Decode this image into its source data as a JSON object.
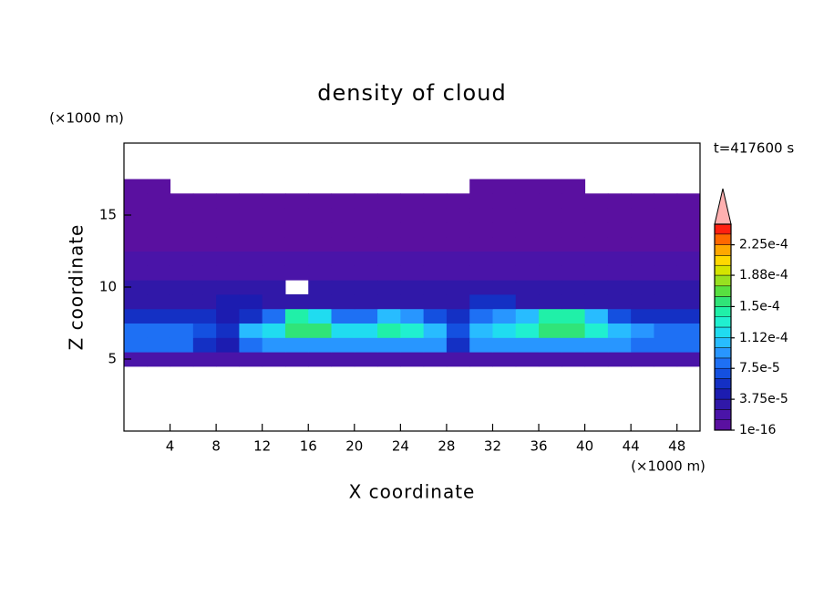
{
  "chart_data": {
    "type": "contour",
    "title": "density of cloud",
    "xlabel": "X coordinate",
    "ylabel": "Z coordinate",
    "xunit": "(×1000 m)",
    "yunit": "(×1000 m)",
    "annotation": "t=417600 s",
    "xlim": [
      0,
      50
    ],
    "ylim": [
      0,
      20
    ],
    "xticks": [
      4,
      8,
      12,
      16,
      20,
      24,
      28,
      32,
      36,
      40,
      44,
      48
    ],
    "yticks": [
      5,
      10,
      15
    ],
    "x": [
      1,
      3,
      5,
      7,
      9,
      11,
      13,
      15,
      17,
      19,
      21,
      23,
      25,
      27,
      29,
      31,
      33,
      35,
      37,
      39,
      41,
      43,
      45,
      47,
      49
    ],
    "z": [
      5,
      6,
      7,
      8,
      9,
      10,
      11,
      12,
      13,
      14,
      15,
      16,
      17
    ],
    "values": [
      [
        2e-05,
        2e-05,
        2e-05,
        2e-05,
        2e-05,
        2e-05,
        2e-05,
        2e-05,
        2e-05,
        2e-05,
        2e-05,
        2e-05,
        2e-05,
        2e-05,
        2e-05,
        2e-05,
        2e-05,
        2e-05,
        2e-05,
        2e-05,
        2e-05,
        2e-05,
        2e-05,
        2e-05,
        2e-05
      ],
      [
        8e-05,
        8e-05,
        8e-05,
        6e-05,
        4e-05,
        8e-05,
        9e-05,
        9e-05,
        9e-05,
        9e-05,
        9e-05,
        9e-05,
        9e-05,
        9e-05,
        5e-05,
        9e-05,
        9e-05,
        9e-05,
        9e-05,
        9e-05,
        9e-05,
        9e-05,
        8e-05,
        8e-05,
        8e-05
      ],
      [
        8e-05,
        8e-05,
        8e-05,
        7e-05,
        5e-05,
        0.0001,
        0.00012,
        0.00015,
        0.00015,
        0.00012,
        0.00012,
        0.00014,
        0.00013,
        0.00011,
        7e-05,
        0.00011,
        0.00012,
        0.00013,
        0.00015,
        0.00015,
        0.00013,
        0.00011,
        9e-05,
        8e-05,
        8e-05
      ],
      [
        5e-05,
        5e-05,
        5e-05,
        5e-05,
        4e-05,
        6e-05,
        8e-05,
        0.00014,
        0.00012,
        8e-05,
        8e-05,
        0.0001,
        9e-05,
        7e-05,
        6e-05,
        8e-05,
        9e-05,
        0.00011,
        0.00014,
        0.00014,
        0.0001,
        7e-05,
        6e-05,
        5e-05,
        5e-05
      ],
      [
        3.5e-05,
        3.5e-05,
        3.5e-05,
        3.5e-05,
        4.5e-05,
        4.5e-05,
        3.5e-05,
        3.5e-05,
        3.5e-05,
        3.5e-05,
        3.5e-05,
        3.5e-05,
        3.5e-05,
        3.5e-05,
        3.5e-05,
        5e-05,
        5e-05,
        3.5e-05,
        3.5e-05,
        3.5e-05,
        3.5e-05,
        3.5e-05,
        3.5e-05,
        3.5e-05,
        3.5e-05
      ],
      [
        2.5e-05,
        2.5e-05,
        2.5e-05,
        2.5e-05,
        2.5e-05,
        2.5e-05,
        2.5e-05,
        null,
        2.5e-05,
        2.5e-05,
        2.5e-05,
        2.5e-05,
        2.5e-05,
        2.5e-05,
        2.5e-05,
        2.5e-05,
        2.5e-05,
        2.5e-05,
        2.5e-05,
        2.5e-05,
        2.5e-05,
        2.5e-05,
        2.5e-05,
        2.5e-05,
        2.5e-05
      ],
      [
        2e-05,
        2e-05,
        2e-05,
        2e-05,
        2e-05,
        2e-05,
        2e-05,
        2e-05,
        2e-05,
        2e-05,
        2e-05,
        2e-05,
        2e-05,
        2e-05,
        2e-05,
        2e-05,
        2e-05,
        2e-05,
        2e-05,
        2e-05,
        2e-05,
        2e-05,
        2e-05,
        2e-05,
        2e-05
      ],
      [
        1.5e-05,
        1.5e-05,
        1.5e-05,
        1.5e-05,
        1.5e-05,
        1.5e-05,
        1.5e-05,
        1.5e-05,
        1.5e-05,
        1.5e-05,
        1.5e-05,
        1.5e-05,
        1.5e-05,
        1.5e-05,
        1.5e-05,
        1.5e-05,
        1.5e-05,
        1.5e-05,
        1.5e-05,
        1.5e-05,
        1.5e-05,
        1.5e-05,
        1.5e-05,
        1.5e-05,
        1.5e-05
      ],
      [
        1e-05,
        1e-05,
        1e-05,
        1e-05,
        1e-05,
        1e-05,
        1e-05,
        1e-05,
        1e-05,
        1e-05,
        1e-05,
        1e-05,
        1e-05,
        1e-05,
        1e-05,
        1e-05,
        1e-05,
        1e-05,
        1e-05,
        1e-05,
        1e-05,
        1e-05,
        1e-05,
        1e-05,
        1e-05
      ],
      [
        7e-06,
        7e-06,
        7e-06,
        7e-06,
        7e-06,
        7e-06,
        7e-06,
        7e-06,
        7e-06,
        7e-06,
        7e-06,
        7e-06,
        7e-06,
        7e-06,
        7e-06,
        7e-06,
        7e-06,
        7e-06,
        7e-06,
        7e-06,
        7e-06,
        7e-06,
        7e-06,
        7e-06,
        7e-06
      ],
      [
        5e-06,
        5e-06,
        5e-06,
        5e-06,
        5e-06,
        5e-06,
        5e-06,
        5e-06,
        5e-06,
        5e-06,
        5e-06,
        5e-06,
        5e-06,
        5e-06,
        5e-06,
        5e-06,
        5e-06,
        5e-06,
        5e-06,
        5e-06,
        5e-06,
        5e-06,
        5e-06,
        5e-06,
        5e-06
      ],
      [
        5e-06,
        5e-06,
        5e-06,
        5e-06,
        5e-06,
        5e-06,
        5e-06,
        5e-06,
        5e-06,
        5e-06,
        5e-06,
        5e-06,
        5e-06,
        5e-06,
        5e-06,
        5e-06,
        5e-06,
        5e-06,
        5e-06,
        5e-06,
        5e-06,
        5e-06,
        5e-06,
        5e-06,
        5e-06
      ],
      [
        5e-06,
        5e-06,
        null,
        null,
        null,
        null,
        null,
        null,
        null,
        null,
        null,
        null,
        null,
        null,
        null,
        5e-06,
        5e-06,
        5e-06,
        5e-06,
        5e-06,
        null,
        null,
        null,
        null,
        null
      ]
    ],
    "levels": [
      1e-16,
      1.25e-05,
      2.5e-05,
      3.75e-05,
      5e-05,
      6.25e-05,
      7.5e-05,
      8.75e-05,
      0.0001,
      0.000112,
      0.000125,
      0.000138,
      0.00015,
      0.000162,
      0.000175,
      0.000188,
      0.0002,
      0.000212,
      0.000225,
      0.000238,
      0.00025
    ],
    "colors": [
      "#5a10a0",
      "#4a14a8",
      "#3018a8",
      "#1c1cb0",
      "#1430c4",
      "#1450e0",
      "#1e70f4",
      "#2896ff",
      "#28bcff",
      "#20dcf0",
      "#20f0d0",
      "#20f0a8",
      "#30e478",
      "#58e040",
      "#98e020",
      "#d4e400",
      "#ffd800",
      "#ffa800",
      "#ff6800",
      "#ff2010"
    ],
    "over_color": "#ffb0b0",
    "cticks": [
      {
        "value": 1e-16,
        "label": "1e-16"
      },
      {
        "value": 3.75e-05,
        "label": "3.75e-5"
      },
      {
        "value": 7.5e-05,
        "label": "7.5e-5"
      },
      {
        "value": 0.000112,
        "label": "1.12e-4"
      },
      {
        "value": 0.00015,
        "label": "1.5e-4"
      },
      {
        "value": 0.000188,
        "label": "1.88e-4"
      },
      {
        "value": 0.000225,
        "label": "2.25e-4"
      }
    ]
  }
}
